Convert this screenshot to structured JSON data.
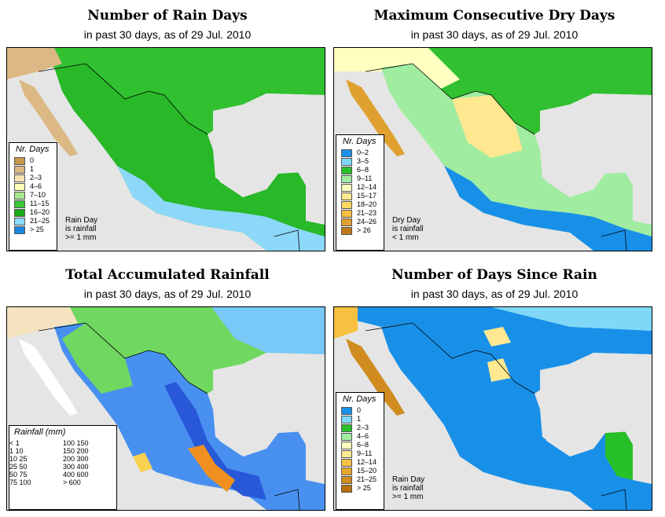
{
  "panels": [
    {
      "title": "Number of Rain Days",
      "subtitle": "in past 30 days, as of  29 Jul. 2010",
      "legend_title": "Nr. Days",
      "legend": [
        {
          "label": "0",
          "color": "#c89850"
        },
        {
          "label": "1",
          "color": "#dcb884"
        },
        {
          "label": "2–3",
          "color": "#f5e3b0"
        },
        {
          "label": "4–6",
          "color": "#ffffb8"
        },
        {
          "label": "7–10",
          "color": "#a8e890"
        },
        {
          "label": "11–15",
          "color": "#38c838"
        },
        {
          "label": "16–20",
          "color": "#18a818"
        },
        {
          "label": "21–25",
          "color": "#8cd8f8"
        },
        {
          "label": "> 25",
          "color": "#1888e0"
        }
      ],
      "note": [
        "Rain Day",
        "is rainfall",
        ">= 1 mm"
      ]
    },
    {
      "title": "Maximum Consecutive Dry Days",
      "subtitle": "in past 30 days, as of  29 Jul. 2010",
      "legend_title": "Nr. Days",
      "legend": [
        {
          "label": "0–2",
          "color": "#1890e8"
        },
        {
          "label": "3–5",
          "color": "#80d8f8"
        },
        {
          "label": "6–8",
          "color": "#28c028"
        },
        {
          "label": "9–11",
          "color": "#a0eca0"
        },
        {
          "label": "12–14",
          "color": "#ffffc0"
        },
        {
          "label": "15–17",
          "color": "#ffe890"
        },
        {
          "label": "18–20",
          "color": "#ffd860"
        },
        {
          "label": "21–23",
          "color": "#f8c040"
        },
        {
          "label": "24–26",
          "color": "#e0a030"
        },
        {
          "label": "> 26",
          "color": "#c07818"
        }
      ],
      "note": [
        "Dry Day",
        "is rainfall",
        "< 1 mm"
      ]
    },
    {
      "title": "Total Accumulated Rainfall",
      "subtitle": "in past 30 days, as of  29 Jul. 2010",
      "legend_title": "Rainfall (mm)",
      "legend": [
        {
          "label": "< 1",
          "color": "#ffffff"
        },
        {
          "label": "1   10",
          "color": "#f5e3c0"
        },
        {
          "label": "10   25",
          "color": "#b8f0a0"
        },
        {
          "label": "25   50",
          "color": "#70d860"
        },
        {
          "label": "50   75",
          "color": "#38b838"
        },
        {
          "label": "75   100",
          "color": "#b0e8f8"
        },
        {
          "label": "100  150",
          "color": "#78c8f8"
        },
        {
          "label": "150  200",
          "color": "#4890f0"
        },
        {
          "label": "200  300",
          "color": "#2858d8"
        },
        {
          "label": "300  400",
          "color": "#f8d050"
        },
        {
          "label": "400  600",
          "color": "#f09020"
        },
        {
          "label": "> 600",
          "color": "#e82010"
        }
      ]
    },
    {
      "title": "Number of Days Since Rain",
      "subtitle": "in past 30 days, as of  29 Jul. 2010",
      "legend_title": "Nr. Days",
      "legend": [
        {
          "label": "0",
          "color": "#1890e8"
        },
        {
          "label": "1",
          "color": "#80d8f8"
        },
        {
          "label": "2–3",
          "color": "#28c028"
        },
        {
          "label": "4–6",
          "color": "#a0eca0"
        },
        {
          "label": "6–8",
          "color": "#ffffc0"
        },
        {
          "label": "9–11",
          "color": "#ffe890"
        },
        {
          "label": "12–14",
          "color": "#f8c040"
        },
        {
          "label": "15–20",
          "color": "#e8a828"
        },
        {
          "label": "21–25",
          "color": "#d08c20"
        },
        {
          "label": "> 25",
          "color": "#b87010"
        }
      ],
      "note": [
        "Rain Day",
        "is rainfall",
        ">= 1 mm"
      ]
    }
  ],
  "colors": {
    "ocean": "#e5e5e5",
    "border": "#000000"
  }
}
